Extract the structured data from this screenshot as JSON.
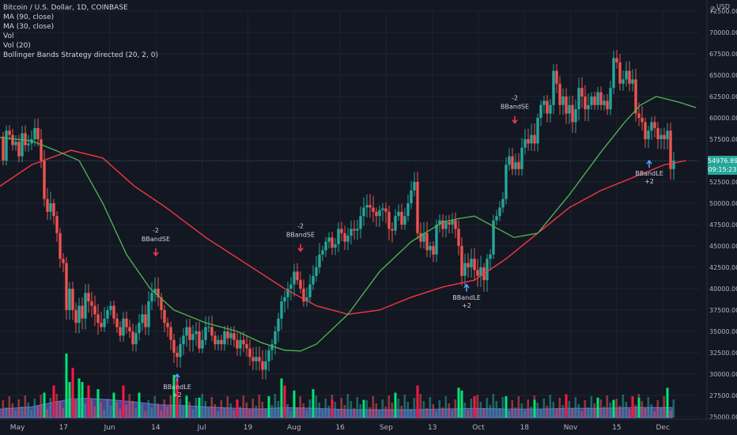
{
  "legend": {
    "symbol": "Bitcoin / U.S. Dollar, 1D, COINBASE",
    "ma90": "MA (90, close)",
    "ma30": "MA (30, close)",
    "vol": "Vol",
    "vol20": "Vol (20)",
    "bb": "Bollinger Bands Strategy directed (20, 2, 0)"
  },
  "axis": {
    "currency": "USD",
    "zoom_label": "Z",
    "last_price": "54976.89",
    "countdown": "09:15:23"
  },
  "colors": {
    "background": "#131722",
    "up": "#26a69a",
    "down": "#ef5350",
    "ma90": "#f23645",
    "ma30": "#4caf50",
    "vol_up": "#00e676",
    "vol_down": "#ff1744",
    "vol_ma_fill": "#7b68ee",
    "signal_long": "#5b9cf6",
    "signal_short": "#f23645"
  },
  "chart_data": {
    "type": "candlestick",
    "ylim": [
      25000,
      72500
    ],
    "y_ticks": [
      "72500.00",
      "70000.00",
      "67500.00",
      "65000.00",
      "62500.00",
      "60000.00",
      "57500.00",
      "55000.00",
      "52500.00",
      "50000.00",
      "47500.00",
      "45000.00",
      "42500.00",
      "40000.00",
      "37500.00",
      "35000.00",
      "32500.00",
      "30000.00",
      "27500.00",
      "25000.00"
    ],
    "x_ticks": [
      "May",
      "17",
      "Jun",
      "14",
      "Jul",
      "19",
      "Aug",
      "16",
      "Sep",
      "13",
      "Oct",
      "18",
      "Nov",
      "15",
      "Dec"
    ],
    "close_path": [
      [
        0,
        57800
      ],
      [
        4,
        55000
      ],
      [
        8,
        58500
      ],
      [
        12,
        58000
      ],
      [
        16,
        56800
      ],
      [
        20,
        57200
      ],
      [
        24,
        55500
      ],
      [
        28,
        58200
      ],
      [
        32,
        56800
      ],
      [
        36,
        57000
      ],
      [
        40,
        57500
      ],
      [
        44,
        58800
      ],
      [
        48,
        57500
      ],
      [
        52,
        55000
      ],
      [
        56,
        50500
      ],
      [
        60,
        49000
      ],
      [
        64,
        50000
      ],
      [
        68,
        48500
      ],
      [
        72,
        46500
      ],
      [
        76,
        43500
      ],
      [
        80,
        43000
      ],
      [
        84,
        37500
      ],
      [
        88,
        40000
      ],
      [
        92,
        37500
      ],
      [
        96,
        36000
      ],
      [
        100,
        38000
      ],
      [
        104,
        36500
      ],
      [
        108,
        39500
      ],
      [
        112,
        38500
      ],
      [
        116,
        38000
      ],
      [
        120,
        37000
      ],
      [
        124,
        36000
      ],
      [
        128,
        35500
      ],
      [
        132,
        36500
      ],
      [
        136,
        37500
      ],
      [
        140,
        38000
      ],
      [
        144,
        36500
      ],
      [
        148,
        35500
      ],
      [
        152,
        34500
      ],
      [
        156,
        36500
      ],
      [
        160,
        35500
      ],
      [
        164,
        35000
      ],
      [
        168,
        33500
      ],
      [
        172,
        34800
      ],
      [
        176,
        36000
      ],
      [
        180,
        37000
      ],
      [
        184,
        35500
      ],
      [
        188,
        38500
      ],
      [
        192,
        39500
      ],
      [
        196,
        40000
      ],
      [
        200,
        39000
      ],
      [
        204,
        37500
      ],
      [
        208,
        36000
      ],
      [
        212,
        35500
      ],
      [
        216,
        34000
      ],
      [
        220,
        32500
      ],
      [
        224,
        32000
      ],
      [
        228,
        33500
      ],
      [
        232,
        34500
      ],
      [
        236,
        35500
      ],
      [
        240,
        34000
      ],
      [
        244,
        34700
      ],
      [
        248,
        35000
      ],
      [
        252,
        33000
      ],
      [
        256,
        34000
      ],
      [
        260,
        35500
      ],
      [
        264,
        35500
      ],
      [
        268,
        34500
      ],
      [
        272,
        33500
      ],
      [
        276,
        34000
      ],
      [
        280,
        33500
      ],
      [
        284,
        35000
      ],
      [
        288,
        34200
      ],
      [
        292,
        34800
      ],
      [
        296,
        34000
      ],
      [
        300,
        33000
      ],
      [
        304,
        34000
      ],
      [
        308,
        33500
      ],
      [
        312,
        33000
      ],
      [
        316,
        32000
      ],
      [
        320,
        31500
      ],
      [
        324,
        32000
      ],
      [
        328,
        31500
      ],
      [
        332,
        30500
      ],
      [
        336,
        31500
      ],
      [
        340,
        32800
      ],
      [
        344,
        33500
      ],
      [
        348,
        35000
      ],
      [
        352,
        36500
      ],
      [
        356,
        38500
      ],
      [
        360,
        39000
      ],
      [
        364,
        40000
      ],
      [
        368,
        40500
      ],
      [
        372,
        42000
      ],
      [
        376,
        41000
      ],
      [
        380,
        40000
      ],
      [
        384,
        38500
      ],
      [
        388,
        39000
      ],
      [
        392,
        40500
      ],
      [
        396,
        41500
      ],
      [
        400,
        42500
      ],
      [
        404,
        44000
      ],
      [
        408,
        44500
      ],
      [
        412,
        45500
      ],
      [
        416,
        46000
      ],
      [
        420,
        44800
      ],
      [
        424,
        45200
      ],
      [
        428,
        47000
      ],
      [
        432,
        46500
      ],
      [
        436,
        45500
      ],
      [
        440,
        46200
      ],
      [
        444,
        47000
      ],
      [
        448,
        46800
      ],
      [
        452,
        47000
      ],
      [
        456,
        48500
      ],
      [
        460,
        49500
      ],
      [
        464,
        49800
      ],
      [
        468,
        49500
      ],
      [
        472,
        49000
      ],
      [
        476,
        48500
      ],
      [
        480,
        49200
      ],
      [
        484,
        49400
      ],
      [
        488,
        49000
      ],
      [
        492,
        47000
      ],
      [
        496,
        46800
      ],
      [
        500,
        48500
      ],
      [
        504,
        49000
      ],
      [
        508,
        47500
      ],
      [
        512,
        48500
      ],
      [
        516,
        50000
      ],
      [
        520,
        51500
      ],
      [
        524,
        52500
      ],
      [
        528,
        46500
      ],
      [
        532,
        45500
      ],
      [
        536,
        46500
      ],
      [
        540,
        44500
      ],
      [
        544,
        45000
      ],
      [
        548,
        44000
      ],
      [
        552,
        47500
      ],
      [
        556,
        48000
      ],
      [
        560,
        47000
      ],
      [
        564,
        47800
      ],
      [
        568,
        47500
      ],
      [
        572,
        48000
      ],
      [
        576,
        47000
      ],
      [
        580,
        45000
      ],
      [
        584,
        41500
      ],
      [
        588,
        43000
      ],
      [
        592,
        42500
      ],
      [
        596,
        43500
      ],
      [
        600,
        42200
      ],
      [
        604,
        41500
      ],
      [
        608,
        42500
      ],
      [
        612,
        41000
      ],
      [
        616,
        43500
      ],
      [
        620,
        44000
      ],
      [
        624,
        48000
      ],
      [
        628,
        48500
      ],
      [
        632,
        49500
      ],
      [
        636,
        50500
      ],
      [
        640,
        54500
      ],
      [
        644,
        55500
      ],
      [
        648,
        54000
      ],
      [
        652,
        54800
      ],
      [
        656,
        54000
      ],
      [
        660,
        56500
      ],
      [
        664,
        57500
      ],
      [
        668,
        57000
      ],
      [
        672,
        58000
      ],
      [
        676,
        57000
      ],
      [
        680,
        60000
      ],
      [
        684,
        61500
      ],
      [
        688,
        62000
      ],
      [
        692,
        60500
      ],
      [
        696,
        61500
      ],
      [
        700,
        65500
      ],
      [
        704,
        64000
      ],
      [
        708,
        61500
      ],
      [
        712,
        62500
      ],
      [
        716,
        60500
      ],
      [
        720,
        61500
      ],
      [
        724,
        59500
      ],
      [
        728,
        61000
      ],
      [
        732,
        63500
      ],
      [
        736,
        62500
      ],
      [
        740,
        61000
      ],
      [
        744,
        61500
      ],
      [
        748,
        62500
      ],
      [
        752,
        61500
      ],
      [
        756,
        63000
      ],
      [
        760,
        61500
      ],
      [
        764,
        62000
      ],
      [
        768,
        61000
      ],
      [
        772,
        63500
      ],
      [
        776,
        67000
      ],
      [
        780,
        66500
      ],
      [
        784,
        64000
      ],
      [
        788,
        64500
      ],
      [
        792,
        65500
      ],
      [
        796,
        64000
      ],
      [
        800,
        64500
      ],
      [
        804,
        60500
      ],
      [
        808,
        60000
      ],
      [
        812,
        59500
      ],
      [
        816,
        57500
      ],
      [
        820,
        58500
      ],
      [
        824,
        59500
      ],
      [
        828,
        58800
      ],
      [
        832,
        57500
      ],
      [
        836,
        58000
      ],
      [
        840,
        57500
      ],
      [
        844,
        58500
      ],
      [
        848,
        54000
      ],
      [
        852,
        55000
      ]
    ],
    "series": [
      {
        "name": "MA (90, close)",
        "points": [
          [
            0,
            52000
          ],
          [
            40,
            54500
          ],
          [
            90,
            56200
          ],
          [
            130,
            55300
          ],
          [
            170,
            52000
          ],
          [
            210,
            49500
          ],
          [
            260,
            46000
          ],
          [
            310,
            43000
          ],
          [
            360,
            40000
          ],
          [
            400,
            38000
          ],
          [
            440,
            37000
          ],
          [
            480,
            37500
          ],
          [
            520,
            39000
          ],
          [
            560,
            40200
          ],
          [
            600,
            41000
          ],
          [
            640,
            43500
          ],
          [
            680,
            46500
          ],
          [
            720,
            49500
          ],
          [
            760,
            51500
          ],
          [
            800,
            53000
          ],
          [
            840,
            54500
          ],
          [
            868,
            55000
          ]
        ]
      },
      {
        "name": "MA (30, close)",
        "points": [
          [
            0,
            57700
          ],
          [
            40,
            57300
          ],
          [
            70,
            56200
          ],
          [
            100,
            55000
          ],
          [
            130,
            50000
          ],
          [
            160,
            44000
          ],
          [
            190,
            40000
          ],
          [
            220,
            37500
          ],
          [
            260,
            36000
          ],
          [
            300,
            35000
          ],
          [
            330,
            33700
          ],
          [
            360,
            32800
          ],
          [
            380,
            32700
          ],
          [
            400,
            33500
          ],
          [
            440,
            37000
          ],
          [
            480,
            42000
          ],
          [
            520,
            45500
          ],
          [
            560,
            47800
          ],
          [
            580,
            48200
          ],
          [
            600,
            48500
          ],
          [
            620,
            47500
          ],
          [
            650,
            46000
          ],
          [
            680,
            46500
          ],
          [
            720,
            51000
          ],
          [
            760,
            56000
          ],
          [
            790,
            59500
          ],
          [
            810,
            61500
          ],
          [
            830,
            62500
          ],
          [
            860,
            61800
          ],
          [
            880,
            61200
          ]
        ]
      }
    ],
    "volume_bars": [
      [
        56,
        0.35
      ],
      [
        68,
        0.45
      ],
      [
        84,
        0.9
      ],
      [
        88,
        0.5
      ],
      [
        92,
        0.7
      ],
      [
        100,
        0.55
      ],
      [
        104,
        0.5
      ],
      [
        112,
        0.45
      ],
      [
        124,
        0.4
      ],
      [
        144,
        0.35
      ],
      [
        156,
        0.45
      ],
      [
        176,
        0.35
      ],
      [
        220,
        0.6
      ],
      [
        224,
        0.55
      ],
      [
        236,
        0.3
      ],
      [
        252,
        0.28
      ],
      [
        300,
        0.25
      ],
      [
        340,
        0.3
      ],
      [
        356,
        0.55
      ],
      [
        360,
        0.45
      ],
      [
        372,
        0.38
      ],
      [
        396,
        0.4
      ],
      [
        420,
        0.25
      ],
      [
        460,
        0.25
      ],
      [
        500,
        0.35
      ],
      [
        528,
        0.45
      ],
      [
        580,
        0.42
      ],
      [
        584,
        0.38
      ],
      [
        600,
        0.3
      ],
      [
        640,
        0.3
      ],
      [
        676,
        0.25
      ],
      [
        716,
        0.32
      ],
      [
        756,
        0.28
      ],
      [
        776,
        0.25
      ],
      [
        800,
        0.3
      ],
      [
        808,
        0.28
      ],
      [
        844,
        0.42
      ]
    ],
    "vol_ma": [
      [
        0,
        0.12
      ],
      [
        40,
        0.15
      ],
      [
        70,
        0.22
      ],
      [
        90,
        0.26
      ],
      [
        110,
        0.27
      ],
      [
        140,
        0.25
      ],
      [
        170,
        0.22
      ],
      [
        200,
        0.18
      ],
      [
        230,
        0.17
      ],
      [
        260,
        0.15
      ],
      [
        300,
        0.13
      ],
      [
        330,
        0.12
      ],
      [
        360,
        0.14
      ],
      [
        400,
        0.13
      ],
      [
        440,
        0.11
      ],
      [
        480,
        0.11
      ],
      [
        520,
        0.11
      ],
      [
        560,
        0.12
      ],
      [
        600,
        0.13
      ],
      [
        640,
        0.12
      ],
      [
        680,
        0.12
      ],
      [
        720,
        0.13
      ],
      [
        760,
        0.13
      ],
      [
        800,
        0.14
      ],
      [
        850,
        0.14
      ]
    ],
    "signals": [
      {
        "type": "short",
        "x": 197,
        "y": 42500,
        "label": "BBandSE",
        "qty": "-2"
      },
      {
        "type": "long",
        "x": 224,
        "y": 31000,
        "label": "BBandLE",
        "qty": "+2"
      },
      {
        "type": "short",
        "x": 380,
        "y": 43000,
        "label": "BBandSE",
        "qty": "-2"
      },
      {
        "type": "long",
        "x": 590,
        "y": 41500,
        "label": "BBandLE",
        "qty": "+2"
      },
      {
        "type": "short",
        "x": 651,
        "y": 58000,
        "label": "BBandSE",
        "qty": "-2"
      },
      {
        "type": "long",
        "x": 821,
        "y": 56000,
        "label": "BBandLE",
        "qty": "+2"
      }
    ]
  }
}
